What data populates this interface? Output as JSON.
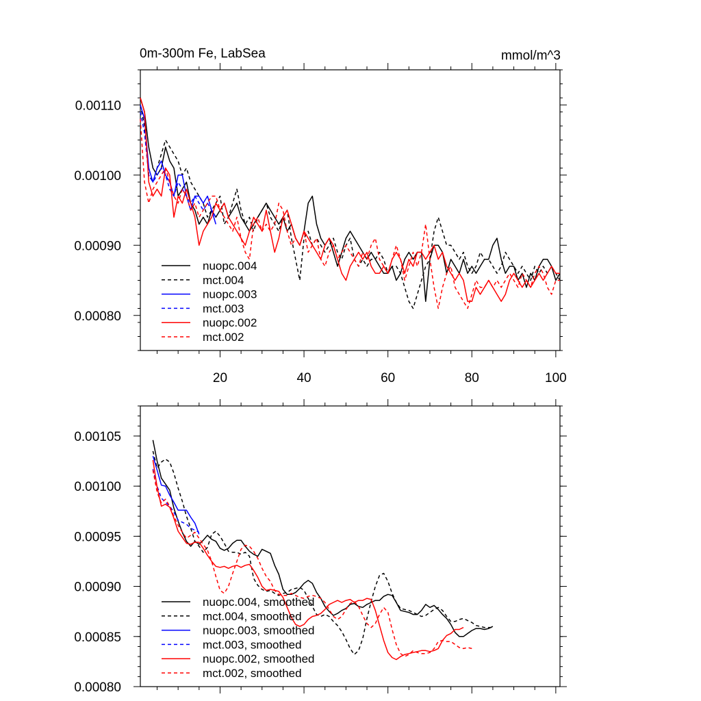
{
  "chart_data": [
    {
      "type": "line",
      "title": "0m-300m Fe, LabSea",
      "units": "mmol/m^3",
      "xlim": [
        1,
        101
      ],
      "ylim": [
        0.00075,
        0.00115
      ],
      "xticks": [
        20,
        40,
        60,
        80,
        100
      ],
      "xtick_labels": [
        "20",
        "40",
        "60",
        "80",
        "100"
      ],
      "yticks": [
        0.0008,
        0.0009,
        0.001,
        0.0011
      ],
      "ytick_labels": [
        "0.00080",
        "0.00090",
        "0.00100",
        "0.00110"
      ],
      "series": [
        {
          "name": "nuopc.004",
          "color": "#000000",
          "dash": "solid",
          "x0": 1,
          "values": [
            0.00111,
            0.00109,
            0.00104,
            0.00101,
            0.001,
            0.00101,
            0.00104,
            0.00102,
            0.00101,
            0.00097,
            0.00098,
            0.00099,
            0.00096,
            0.00095,
            0.00093,
            0.00094,
            0.00093,
            0.00095,
            0.00094,
            0.00095,
            0.00096,
            0.00094,
            0.00095,
            0.00096,
            0.00094,
            0.00093,
            0.00092,
            0.00093,
            0.00094,
            0.00095,
            0.00096,
            0.00095,
            0.00094,
            0.00093,
            0.00094,
            0.00092,
            0.00093,
            0.00091,
            0.0009,
            0.00092,
            0.00096,
            0.00097,
            0.00093,
            0.00091,
            0.0009,
            0.00091,
            0.00089,
            0.00087,
            0.00089,
            0.00091,
            0.00092,
            0.00091,
            0.0009,
            0.00089,
            0.00088,
            0.00089,
            0.00088,
            0.00087,
            0.00086,
            0.00086,
            0.00087,
            0.00085,
            0.00086,
            0.00088,
            0.00089,
            0.00088,
            0.00089,
            0.00089,
            0.00082,
            0.00088,
            0.0009,
            0.0009,
            0.00089,
            0.00086,
            0.00088,
            0.00087,
            0.00086,
            0.00088,
            0.00086,
            0.00087,
            0.00086,
            0.00087,
            0.00088,
            0.00088,
            0.0009,
            0.00091,
            0.00088,
            0.00086,
            0.00087,
            0.00087,
            0.00085,
            0.00086,
            0.00084,
            0.00086,
            0.00085,
            0.00087,
            0.00088,
            0.00088,
            0.00087,
            0.00085,
            0.00086
          ]
        },
        {
          "name": "mct.004",
          "color": "#000000",
          "dash": "dashed",
          "x0": 1,
          "values": [
            0.0011,
            0.00107,
            0.001,
            0.00099,
            0.00101,
            0.00103,
            0.00105,
            0.00104,
            0.00103,
            0.00102,
            0.001,
            0.00101,
            0.00099,
            0.00098,
            0.00097,
            0.00096,
            0.00094,
            0.00095,
            0.00096,
            0.00097,
            0.00093,
            0.00094,
            0.00096,
            0.00098,
            0.00095,
            0.00093,
            0.00094,
            0.00092,
            0.00094,
            0.00095,
            0.00096,
            0.00094,
            0.00093,
            0.00092,
            0.00094,
            0.00095,
            0.00091,
            0.00088,
            0.00085,
            0.00091,
            0.00092,
            0.0009,
            0.00091,
            0.0009,
            0.00089,
            0.0009,
            0.00091,
            0.00089,
            0.00088,
            0.0009,
            0.00091,
            0.00088,
            0.00087,
            0.00088,
            0.00087,
            0.00088,
            0.00088,
            0.00089,
            0.00088,
            0.00086,
            0.00087,
            0.00087,
            0.00086,
            0.00084,
            0.00082,
            0.00081,
            0.00083,
            0.00085,
            0.00087,
            0.00088,
            0.00092,
            0.00094,
            0.00092,
            0.0009,
            0.0009,
            0.00089,
            0.00088,
            0.00089,
            0.00087,
            0.00086,
            0.00087,
            0.00089,
            0.00088,
            0.00088,
            0.00087,
            0.00086,
            0.00087,
            0.00089,
            0.00088,
            0.00087,
            0.00086,
            0.00087,
            0.00086,
            0.00085,
            0.00087,
            0.00086,
            0.00087,
            0.00086,
            0.00087,
            0.00086,
            0.00085
          ]
        },
        {
          "name": "nuopc.003",
          "color": "#0000ff",
          "dash": "solid",
          "x0": 1,
          "values": [
            0.0011,
            0.00108,
            0.00101,
            0.00099,
            0.00101,
            0.00102,
            0.001,
            0.00099,
            0.00097,
            0.001,
            0.001,
            0.00097,
            0.00095,
            0.00097,
            0.00097,
            0.00096,
            0.00097,
            0.00095,
            0.00093
          ]
        },
        {
          "name": "mct.003",
          "color": "#0000ff",
          "dash": "dashed",
          "x0": 1,
          "values": [
            0.00109,
            0.00106,
            0.001,
            0.00099,
            0.001,
            0.00101,
            0.001,
            0.00098,
            0.00097,
            0.00099,
            0.00098,
            0.00097,
            0.00096,
            0.00097,
            0.00096,
            0.00095,
            0.00096,
            0.00095,
            0.00094
          ]
        },
        {
          "name": "nuopc.002",
          "color": "#ff0000",
          "dash": "solid",
          "x0": 1,
          "values": [
            0.00111,
            0.00109,
            0.00099,
            0.00097,
            0.00098,
            0.00097,
            0.00101,
            0.001,
            0.00094,
            0.00097,
            0.00096,
            0.00098,
            0.00096,
            0.00094,
            0.0009,
            0.00092,
            0.00093,
            0.00094,
            0.00096,
            0.00095,
            0.00096,
            0.00094,
            0.00093,
            0.00092,
            0.00091,
            0.0009,
            0.00092,
            0.00094,
            0.00093,
            0.00092,
            0.00095,
            0.00092,
            0.00089,
            0.00091,
            0.00094,
            0.00095,
            0.00093,
            0.00091,
            0.0009,
            0.00092,
            0.00091,
            0.0009,
            0.00089,
            0.00088,
            0.0009,
            0.00091,
            0.0009,
            0.00088,
            0.00086,
            0.00085,
            0.00087,
            0.00088,
            0.00089,
            0.00088,
            0.00089,
            0.00087,
            0.00086,
            0.00086,
            0.00087,
            0.00086,
            0.00088,
            0.00089,
            0.00088,
            0.00086,
            0.00088,
            0.00087,
            0.00089,
            0.00089,
            0.00088,
            0.00089,
            0.0009,
            0.00088,
            0.00089,
            0.00087,
            0.00086,
            0.00085,
            0.00086,
            0.00085,
            0.00082,
            0.00082,
            0.00084,
            0.00083,
            0.00084,
            0.00085,
            0.00084,
            0.00083,
            0.00082,
            0.00083,
            0.00085,
            0.00086,
            0.00085,
            0.00084,
            0.00085,
            0.00084,
            0.00085,
            0.00086,
            0.00085,
            0.00086,
            0.00087,
            0.00086,
            0.00086
          ]
        },
        {
          "name": "mct.002",
          "color": "#ff0000",
          "dash": "dashed",
          "x0": 1,
          "values": [
            0.00108,
            0.00099,
            0.00096,
            0.00098,
            0.00099,
            0.001,
            0.00101,
            0.00099,
            0.00097,
            0.00096,
            0.00098,
            0.00097,
            0.00095,
            0.00096,
            0.00094,
            0.00095,
            0.00096,
            0.00097,
            0.00097,
            0.00095,
            0.00094,
            0.00093,
            0.00092,
            0.00094,
            0.00091,
            0.00089,
            0.00088,
            0.00093,
            0.00094,
            0.00092,
            0.00093,
            0.00092,
            0.00093,
            0.00096,
            0.00095,
            0.00092,
            0.0009,
            0.00091,
            0.0009,
            0.00092,
            0.00089,
            0.0009,
            0.00091,
            0.00088,
            0.00087,
            0.00089,
            0.0009,
            0.00088,
            0.00089,
            0.0009,
            0.00089,
            0.00088,
            0.00087,
            0.00089,
            0.00088,
            0.0009,
            0.00091,
            0.00088,
            0.00087,
            0.00086,
            0.00088,
            0.0009,
            0.00088,
            0.00085,
            0.00087,
            0.00089,
            0.00087,
            0.00089,
            0.00093,
            0.00088,
            0.00084,
            0.00081,
            0.00084,
            0.00086,
            0.00087,
            0.00084,
            0.00083,
            0.00082,
            0.00081,
            0.00083,
            0.00085,
            0.00084,
            0.00084,
            0.00085,
            0.00084,
            0.00085,
            0.00084,
            0.00085,
            0.00086,
            0.00085,
            0.00084,
            0.00086,
            0.00085,
            0.00084,
            0.00086,
            0.00087,
            0.00086,
            0.00084,
            0.00083,
            0.00085,
            0.00085
          ]
        }
      ]
    },
    {
      "type": "line",
      "xlim": [
        1,
        101
      ],
      "ylim": [
        0.0008,
        0.00108
      ],
      "xticks": [
        20,
        40,
        60,
        80,
        100
      ],
      "xtick_labels": [],
      "yticks": [
        0.0008,
        0.00085,
        0.0009,
        0.00095,
        0.001,
        0.00105
      ],
      "ytick_labels": [
        "0.00080",
        "0.00085",
        "0.00090",
        "0.00095",
        "0.00100",
        "0.00105"
      ],
      "series": [
        {
          "name": "nuopc.004, smoothed",
          "color": "#000000",
          "dash": "solid",
          "x0": 4,
          "values": [
            0.001046,
            0.001025,
            0.001008,
            0.001002,
            0.000996,
            0.000978,
            0.000965,
            0.000954,
            0.000945,
            0.00094,
            0.000945,
            0.000942,
            0.000946,
            0.000951,
            0.000947,
            0.000945,
            0.000938,
            0.000936,
            0.000938,
            0.000943,
            0.000946,
            0.000946,
            0.00094,
            0.000935,
            0.000932,
            0.00093,
            0.000937,
            0.000935,
            0.000933,
            0.000921,
            0.000912,
            0.000897,
            0.000892,
            0.000892,
            0.000894,
            0.000898,
            0.000903,
            0.000906,
            0.000903,
            0.000894,
            0.000888,
            0.00088,
            0.000875,
            0.000871,
            0.000873,
            0.000876,
            0.000878,
            0.000882,
            0.000883,
            0.00088,
            0.000879,
            0.000882,
            0.000884,
            0.000886,
            0.000886,
            0.00089,
            0.000892,
            0.000891,
            0.000884,
            0.000876,
            0.000875,
            0.000874,
            0.000872,
            0.000872,
            0.000876,
            0.000882,
            0.000879,
            0.000881,
            0.000877,
            0.000872,
            0.000868,
            0.000862,
            0.000854,
            0.00085,
            0.00085,
            0.000853,
            0.000856,
            0.000858,
            0.000858,
            0.000857,
            0.000858,
            0.00086
          ]
        },
        {
          "name": "mct.004, smoothed",
          "color": "#000000",
          "dash": "dashed",
          "x0": 4,
          "values": [
            0.001035,
            0.001018,
            0.001024,
            0.001027,
            0.001024,
            0.001013,
            0.000998,
            0.000985,
            0.00097,
            0.000958,
            0.000945,
            0.00094,
            0.000934,
            0.000939,
            0.000952,
            0.000955,
            0.00095,
            0.000943,
            0.000935,
            0.000934,
            0.000934,
            0.000932,
            0.000934,
            0.00093,
            0.000908,
            0.000901,
            0.000897,
            0.000895,
            0.000896,
            0.000893,
            0.000891,
            0.000893,
            0.000894,
            0.000897,
            0.000898,
            0.000899,
            0.000896,
            0.000888,
            0.00088,
            0.000872,
            0.00087,
            0.000872,
            0.00087,
            0.000865,
            0.000861,
            0.000855,
            0.000847,
            0.000838,
            0.000832,
            0.000836,
            0.000848,
            0.000868,
            0.000885,
            0.0009,
            0.000911,
            0.000913,
            0.000905,
            0.000893,
            0.000884,
            0.000878,
            0.000877,
            0.000876,
            0.000874,
            0.000872,
            0.00087,
            0.000871,
            0.000874,
            0.000877,
            0.000879,
            0.000876,
            0.00087,
            0.000865,
            0.000865,
            0.000867,
            0.000868,
            0.000866,
            0.000864,
            0.000861,
            0.00086,
            0.000859,
            0.000859,
            0.000859
          ]
        },
        {
          "name": "nuopc.003, smoothed",
          "color": "#0000ff",
          "dash": "solid",
          "x0": 4,
          "values": [
            0.00103,
            0.001016,
            0.001001,
            0.001,
            0.000991,
            0.000984,
            0.000976,
            0.000976,
            0.000976,
            0.000969,
            0.000963,
            0.000952
          ]
        },
        {
          "name": "mct.003, smoothed",
          "color": "#0000ff",
          "dash": "dashed",
          "x0": 4,
          "values": [
            0.001017,
            0.001,
            0.000988,
            0.000984,
            0.00098,
            0.000974,
            0.000966,
            0.000964,
            0.000962,
            0.000958,
            0.000956,
            0.000954
          ]
        },
        {
          "name": "nuopc.002, smoothed",
          "color": "#ff0000",
          "dash": "solid",
          "x0": 4,
          "values": [
            0.001026,
            0.000999,
            0.00098,
            0.000982,
            0.000979,
            0.000968,
            0.000955,
            0.000949,
            0.000943,
            0.000942,
            0.000944,
            0.000944,
            0.000938,
            0.000931,
            0.000925,
            0.00092,
            0.000919,
            0.00092,
            0.000918,
            0.00092,
            0.000921,
            0.000919,
            0.000921,
            0.000922,
            0.000916,
            0.000909,
            0.0009,
            0.000896,
            0.000897,
            0.000896,
            0.000895,
            0.000889,
            0.000879,
            0.000869,
            0.000862,
            0.00086,
            0.000862,
            0.000867,
            0.00087,
            0.000871,
            0.000873,
            0.000877,
            0.000882,
            0.000884,
            0.000886,
            0.000884,
            0.000886,
            0.000887,
            0.000884,
            0.000886,
            0.000886,
            0.000888,
            0.000887,
            0.000876,
            0.000861,
            0.000846,
            0.000834,
            0.000829,
            0.000827,
            0.00083,
            0.000832,
            0.000833,
            0.000834,
            0.000835,
            0.000836,
            0.000836,
            0.000835,
            0.000836,
            0.000838,
            0.000846,
            0.000851,
            0.000853,
            0.000857,
            0.000857,
            0.000859
          ]
        },
        {
          "name": "mct.002, smoothed",
          "color": "#ff0000",
          "dash": "dashed",
          "x0": 4,
          "values": [
            0.001016,
            0.000994,
            0.000983,
            0.000987,
            0.00098,
            0.00097,
            0.000961,
            0.000954,
            0.000948,
            0.000951,
            0.000954,
            0.000948,
            0.000942,
            0.000936,
            0.000925,
            0.00091,
            0.000896,
            0.000893,
            0.0009,
            0.000913,
            0.000925,
            0.000937,
            0.000941,
            0.00094,
            0.000935,
            0.000928,
            0.000918,
            0.00091,
            0.000905,
            0.000896,
            0.000892,
            0.000891,
            0.000891,
            0.000893,
            0.000891,
            0.000889,
            0.000888,
            0.00089,
            0.000891,
            0.00089,
            0.000888,
            0.000884,
            0.000877,
            0.00087,
            0.000867,
            0.00087,
            0.000877,
            0.000883,
            0.000885,
            0.00088,
            0.000871,
            0.000863,
            0.000859,
            0.000863,
            0.000872,
            0.000879,
            0.000874,
            0.000857,
            0.000842,
            0.000833,
            0.00083,
            0.000832,
            0.000836,
            0.000834,
            0.000833,
            0.000833,
            0.000834,
            0.000838,
            0.000845,
            0.000846,
            0.000845,
            0.000845,
            0.000842,
            0.000839,
            0.000838,
            0.000839,
            0.000838
          ]
        }
      ]
    }
  ]
}
